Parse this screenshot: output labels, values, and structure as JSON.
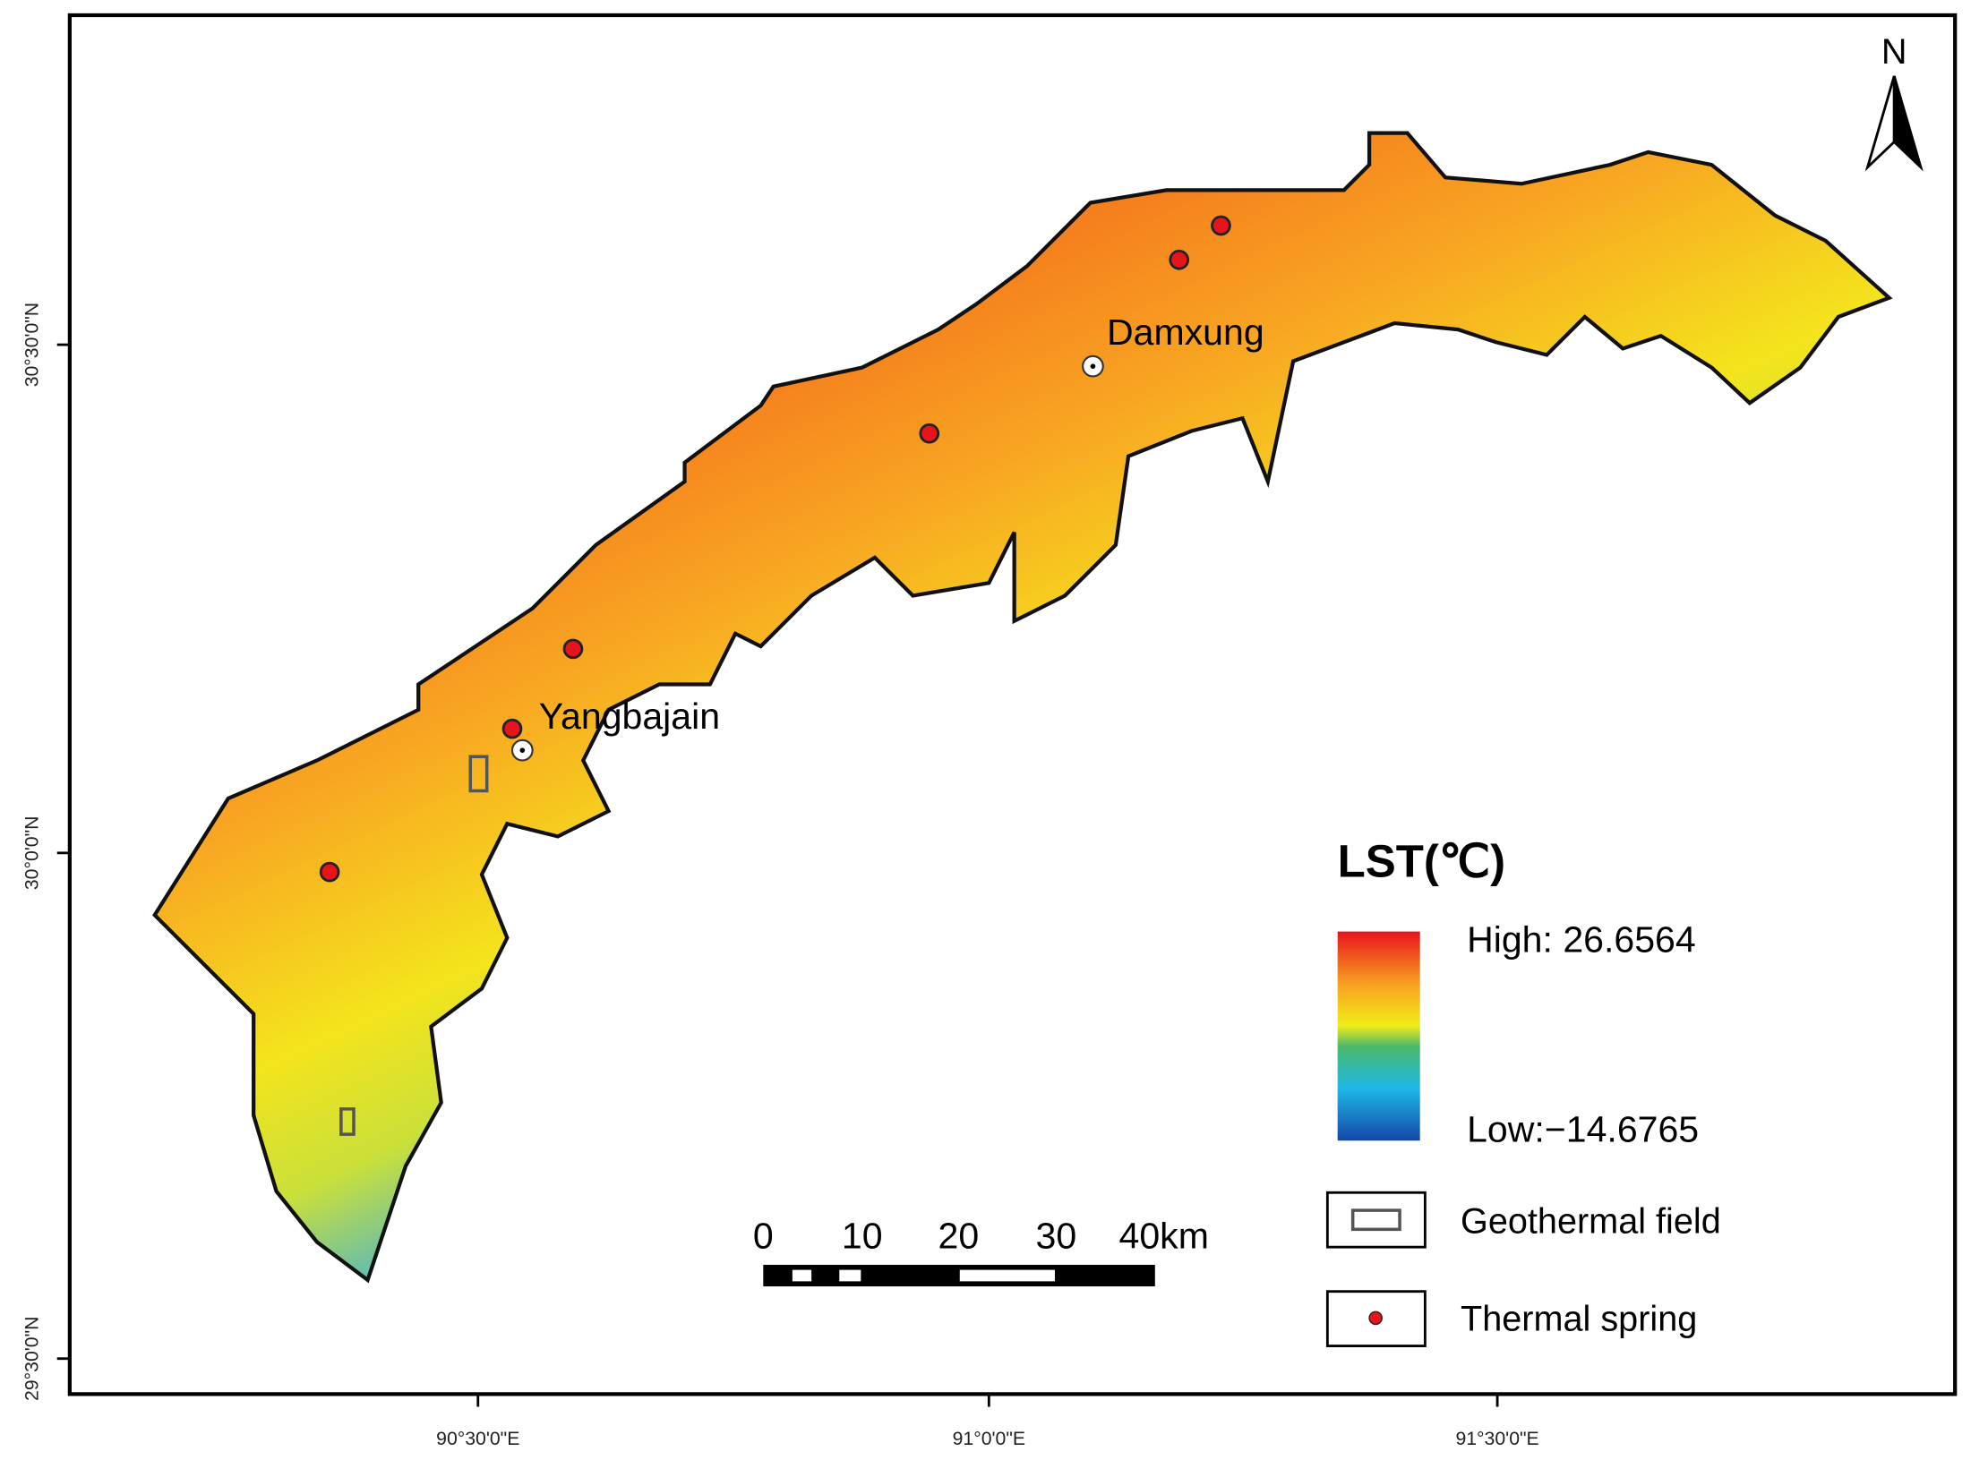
{
  "map": {
    "north": "N",
    "axes": {
      "y_labels": [
        "30°30'0\"N",
        "30°0'0\"N",
        "29°30'0\"N"
      ],
      "x_labels": [
        "90°30'0\"E",
        "91°0'0\"E",
        "91°30'0\"E"
      ]
    },
    "places": [
      "Damxung",
      "Yangbajain"
    ],
    "legend": {
      "title": "LST(℃)",
      "high": "High: 26.6564",
      "low": "Low:−14.6765",
      "items": [
        "Geothermal field",
        "Thermal spring"
      ]
    },
    "scale_bar": {
      "labels": [
        "0",
        "10",
        "20",
        "30",
        "40km"
      ]
    }
  }
}
